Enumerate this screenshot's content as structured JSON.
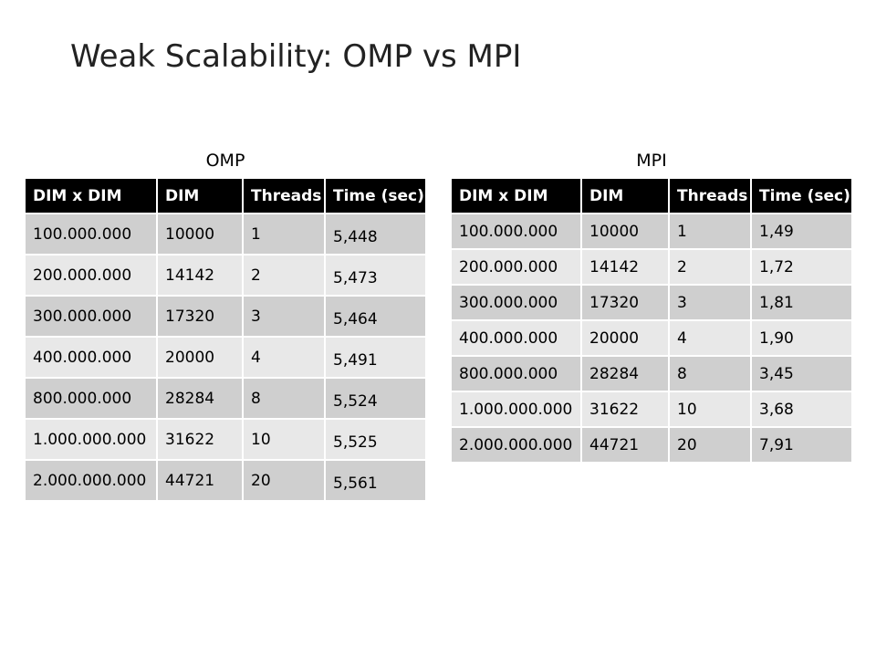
{
  "slide": {
    "title": "Weak Scalability: OMP vs MPI"
  },
  "tables": [
    {
      "label": "OMP",
      "headers": [
        "DIM x DIM",
        "DIM",
        "Threads",
        "Time (sec)"
      ],
      "rows": [
        [
          "100.000.000",
          "10000",
          "1",
          "5,448"
        ],
        [
          "200.000.000",
          "14142",
          "2",
          "5,473"
        ],
        [
          "300.000.000",
          "17320",
          "3",
          "5,464"
        ],
        [
          "400.000.000",
          "20000",
          "4",
          "5,491"
        ],
        [
          "800.000.000",
          "28284",
          "8",
          "5,524"
        ],
        [
          "1.000.000.000",
          "31622",
          "10",
          "5,525"
        ],
        [
          "2.000.000.000",
          "44721",
          "20",
          "5,561"
        ]
      ]
    },
    {
      "label": "MPI",
      "headers": [
        "DIM x DIM",
        "DIM",
        "Threads",
        "Time (sec)"
      ],
      "rows": [
        [
          "100.000.000",
          "10000",
          "1",
          "1,49"
        ],
        [
          "200.000.000",
          "14142",
          "2",
          "1,72"
        ],
        [
          "300.000.000",
          "17320",
          "3",
          "1,81"
        ],
        [
          "400.000.000",
          "20000",
          "4",
          "1,90"
        ],
        [
          "800.000.000",
          "28284",
          "8",
          "3,45"
        ],
        [
          "1.000.000.000",
          "31622",
          "10",
          "3,68"
        ],
        [
          "2.000.000.000",
          "44721",
          "20",
          "7,91"
        ]
      ]
    }
  ],
  "colors": {
    "header_bg": "#000000",
    "row_dark": "#cfcfcf",
    "row_light": "#e8e8e8"
  }
}
